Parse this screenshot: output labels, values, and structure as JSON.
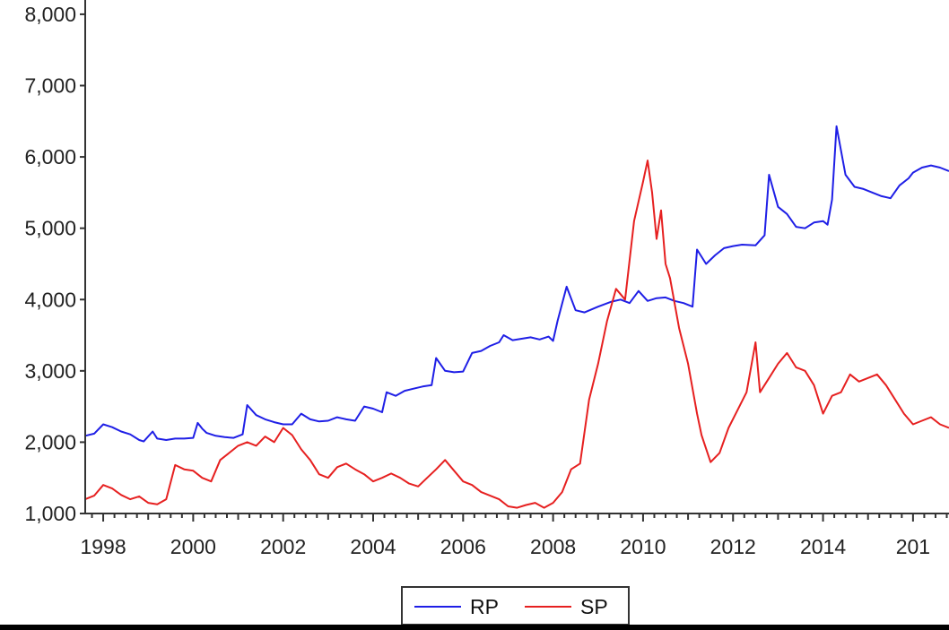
{
  "chart_data": {
    "type": "line",
    "title": "",
    "xlabel": "",
    "ylabel": "",
    "x_tick_labels": [
      "1998",
      "2000",
      "2002",
      "2004",
      "2006",
      "2008",
      "2010",
      "2012",
      "2014",
      "201"
    ],
    "y_tick_labels": [
      "1,000",
      "2,000",
      "3,000",
      "4,000",
      "5,000",
      "6,000",
      "7,000",
      "8,000"
    ],
    "y_ticks": [
      1000,
      2000,
      3000,
      4000,
      5000,
      6000,
      7000,
      8000
    ],
    "xlim": [
      1997.6,
      2016.8
    ],
    "ylim": [
      1000,
      8200
    ],
    "grid": false,
    "legend_position": "bottom-center",
    "series": [
      {
        "name": "RP",
        "color": "#1f1fe6",
        "points": [
          [
            1997.6,
            2090
          ],
          [
            1997.8,
            2120
          ],
          [
            1998.0,
            2250
          ],
          [
            1998.2,
            2210
          ],
          [
            1998.4,
            2150
          ],
          [
            1998.6,
            2110
          ],
          [
            1998.8,
            2030
          ],
          [
            1998.9,
            2010
          ],
          [
            1999.1,
            2150
          ],
          [
            1999.2,
            2050
          ],
          [
            1999.4,
            2030
          ],
          [
            1999.6,
            2050
          ],
          [
            1999.8,
            2050
          ],
          [
            2000.0,
            2060
          ],
          [
            2000.1,
            2270
          ],
          [
            2000.2,
            2190
          ],
          [
            2000.3,
            2130
          ],
          [
            2000.5,
            2090
          ],
          [
            2000.7,
            2070
          ],
          [
            2000.9,
            2060
          ],
          [
            2001.1,
            2110
          ],
          [
            2001.2,
            2520
          ],
          [
            2001.4,
            2380
          ],
          [
            2001.6,
            2320
          ],
          [
            2001.8,
            2280
          ],
          [
            2002.0,
            2250
          ],
          [
            2002.2,
            2250
          ],
          [
            2002.4,
            2400
          ],
          [
            2002.6,
            2320
          ],
          [
            2002.8,
            2290
          ],
          [
            2003.0,
            2300
          ],
          [
            2003.2,
            2350
          ],
          [
            2003.4,
            2320
          ],
          [
            2003.6,
            2300
          ],
          [
            2003.8,
            2500
          ],
          [
            2004.0,
            2470
          ],
          [
            2004.2,
            2420
          ],
          [
            2004.3,
            2700
          ],
          [
            2004.5,
            2650
          ],
          [
            2004.7,
            2720
          ],
          [
            2004.9,
            2750
          ],
          [
            2005.1,
            2780
          ],
          [
            2005.3,
            2800
          ],
          [
            2005.4,
            3180
          ],
          [
            2005.6,
            3000
          ],
          [
            2005.8,
            2980
          ],
          [
            2006.0,
            2990
          ],
          [
            2006.2,
            3250
          ],
          [
            2006.4,
            3280
          ],
          [
            2006.6,
            3350
          ],
          [
            2006.8,
            3400
          ],
          [
            2006.9,
            3500
          ],
          [
            2007.1,
            3430
          ],
          [
            2007.3,
            3450
          ],
          [
            2007.5,
            3470
          ],
          [
            2007.7,
            3440
          ],
          [
            2007.9,
            3480
          ],
          [
            2008.0,
            3420
          ],
          [
            2008.1,
            3700
          ],
          [
            2008.3,
            4180
          ],
          [
            2008.5,
            3850
          ],
          [
            2008.7,
            3820
          ],
          [
            2009.0,
            3900
          ],
          [
            2009.3,
            3970
          ],
          [
            2009.5,
            4000
          ],
          [
            2009.7,
            3950
          ],
          [
            2009.9,
            4120
          ],
          [
            2010.1,
            3980
          ],
          [
            2010.3,
            4020
          ],
          [
            2010.5,
            4030
          ],
          [
            2010.7,
            3980
          ],
          [
            2010.9,
            3950
          ],
          [
            2011.1,
            3900
          ],
          [
            2011.2,
            4700
          ],
          [
            2011.4,
            4500
          ],
          [
            2011.6,
            4620
          ],
          [
            2011.8,
            4720
          ],
          [
            2012.0,
            4750
          ],
          [
            2012.2,
            4770
          ],
          [
            2012.5,
            4760
          ],
          [
            2012.7,
            4900
          ],
          [
            2012.8,
            5750
          ],
          [
            2013.0,
            5300
          ],
          [
            2013.2,
            5200
          ],
          [
            2013.4,
            5020
          ],
          [
            2013.6,
            5000
          ],
          [
            2013.8,
            5080
          ],
          [
            2014.0,
            5100
          ],
          [
            2014.1,
            5050
          ],
          [
            2014.2,
            5400
          ],
          [
            2014.3,
            6430
          ],
          [
            2014.5,
            5750
          ],
          [
            2014.7,
            5580
          ],
          [
            2014.9,
            5550
          ],
          [
            2015.1,
            5500
          ],
          [
            2015.3,
            5450
          ],
          [
            2015.5,
            5420
          ],
          [
            2015.7,
            5600
          ],
          [
            2015.9,
            5700
          ],
          [
            2016.0,
            5780
          ],
          [
            2016.2,
            5850
          ],
          [
            2016.4,
            5880
          ],
          [
            2016.6,
            5850
          ],
          [
            2016.8,
            5800
          ]
        ]
      },
      {
        "name": "SP",
        "color": "#e62020",
        "points": [
          [
            1997.6,
            1200
          ],
          [
            1997.8,
            1250
          ],
          [
            1998.0,
            1400
          ],
          [
            1998.2,
            1350
          ],
          [
            1998.4,
            1260
          ],
          [
            1998.6,
            1200
          ],
          [
            1998.8,
            1240
          ],
          [
            1999.0,
            1150
          ],
          [
            1999.2,
            1130
          ],
          [
            1999.4,
            1200
          ],
          [
            1999.6,
            1680
          ],
          [
            1999.8,
            1620
          ],
          [
            2000.0,
            1600
          ],
          [
            2000.2,
            1500
          ],
          [
            2000.4,
            1450
          ],
          [
            2000.6,
            1750
          ],
          [
            2000.8,
            1850
          ],
          [
            2001.0,
            1950
          ],
          [
            2001.2,
            2000
          ],
          [
            2001.4,
            1950
          ],
          [
            2001.6,
            2080
          ],
          [
            2001.8,
            2000
          ],
          [
            2002.0,
            2200
          ],
          [
            2002.2,
            2100
          ],
          [
            2002.4,
            1900
          ],
          [
            2002.6,
            1750
          ],
          [
            2002.8,
            1550
          ],
          [
            2003.0,
            1500
          ],
          [
            2003.2,
            1650
          ],
          [
            2003.4,
            1700
          ],
          [
            2003.6,
            1620
          ],
          [
            2003.8,
            1550
          ],
          [
            2004.0,
            1450
          ],
          [
            2004.2,
            1500
          ],
          [
            2004.4,
            1560
          ],
          [
            2004.6,
            1500
          ],
          [
            2004.8,
            1420
          ],
          [
            2005.0,
            1380
          ],
          [
            2005.2,
            1500
          ],
          [
            2005.4,
            1620
          ],
          [
            2005.6,
            1750
          ],
          [
            2005.8,
            1600
          ],
          [
            2006.0,
            1450
          ],
          [
            2006.2,
            1400
          ],
          [
            2006.4,
            1300
          ],
          [
            2006.6,
            1250
          ],
          [
            2006.8,
            1200
          ],
          [
            2007.0,
            1100
          ],
          [
            2007.2,
            1080
          ],
          [
            2007.4,
            1120
          ],
          [
            2007.6,
            1150
          ],
          [
            2007.8,
            1080
          ],
          [
            2008.0,
            1150
          ],
          [
            2008.2,
            1300
          ],
          [
            2008.4,
            1620
          ],
          [
            2008.6,
            1700
          ],
          [
            2008.8,
            2600
          ],
          [
            2009.0,
            3100
          ],
          [
            2009.2,
            3700
          ],
          [
            2009.4,
            4150
          ],
          [
            2009.6,
            4000
          ],
          [
            2009.8,
            5100
          ],
          [
            2010.0,
            5650
          ],
          [
            2010.1,
            5950
          ],
          [
            2010.2,
            5500
          ],
          [
            2010.3,
            4850
          ],
          [
            2010.4,
            5250
          ],
          [
            2010.5,
            4500
          ],
          [
            2010.6,
            4300
          ],
          [
            2010.8,
            3600
          ],
          [
            2011.0,
            3100
          ],
          [
            2011.2,
            2400
          ],
          [
            2011.3,
            2100
          ],
          [
            2011.5,
            1720
          ],
          [
            2011.7,
            1850
          ],
          [
            2011.9,
            2200
          ],
          [
            2012.1,
            2450
          ],
          [
            2012.3,
            2700
          ],
          [
            2012.5,
            3400
          ],
          [
            2012.6,
            2700
          ],
          [
            2012.8,
            2900
          ],
          [
            2013.0,
            3100
          ],
          [
            2013.2,
            3250
          ],
          [
            2013.4,
            3050
          ],
          [
            2013.6,
            3000
          ],
          [
            2013.8,
            2800
          ],
          [
            2014.0,
            2400
          ],
          [
            2014.2,
            2650
          ],
          [
            2014.4,
            2700
          ],
          [
            2014.6,
            2950
          ],
          [
            2014.8,
            2850
          ],
          [
            2015.0,
            2900
          ],
          [
            2015.2,
            2950
          ],
          [
            2015.4,
            2800
          ],
          [
            2015.6,
            2600
          ],
          [
            2015.8,
            2400
          ],
          [
            2016.0,
            2250
          ],
          [
            2016.2,
            2300
          ],
          [
            2016.4,
            2350
          ],
          [
            2016.6,
            2250
          ],
          [
            2016.8,
            2200
          ]
        ]
      }
    ]
  }
}
